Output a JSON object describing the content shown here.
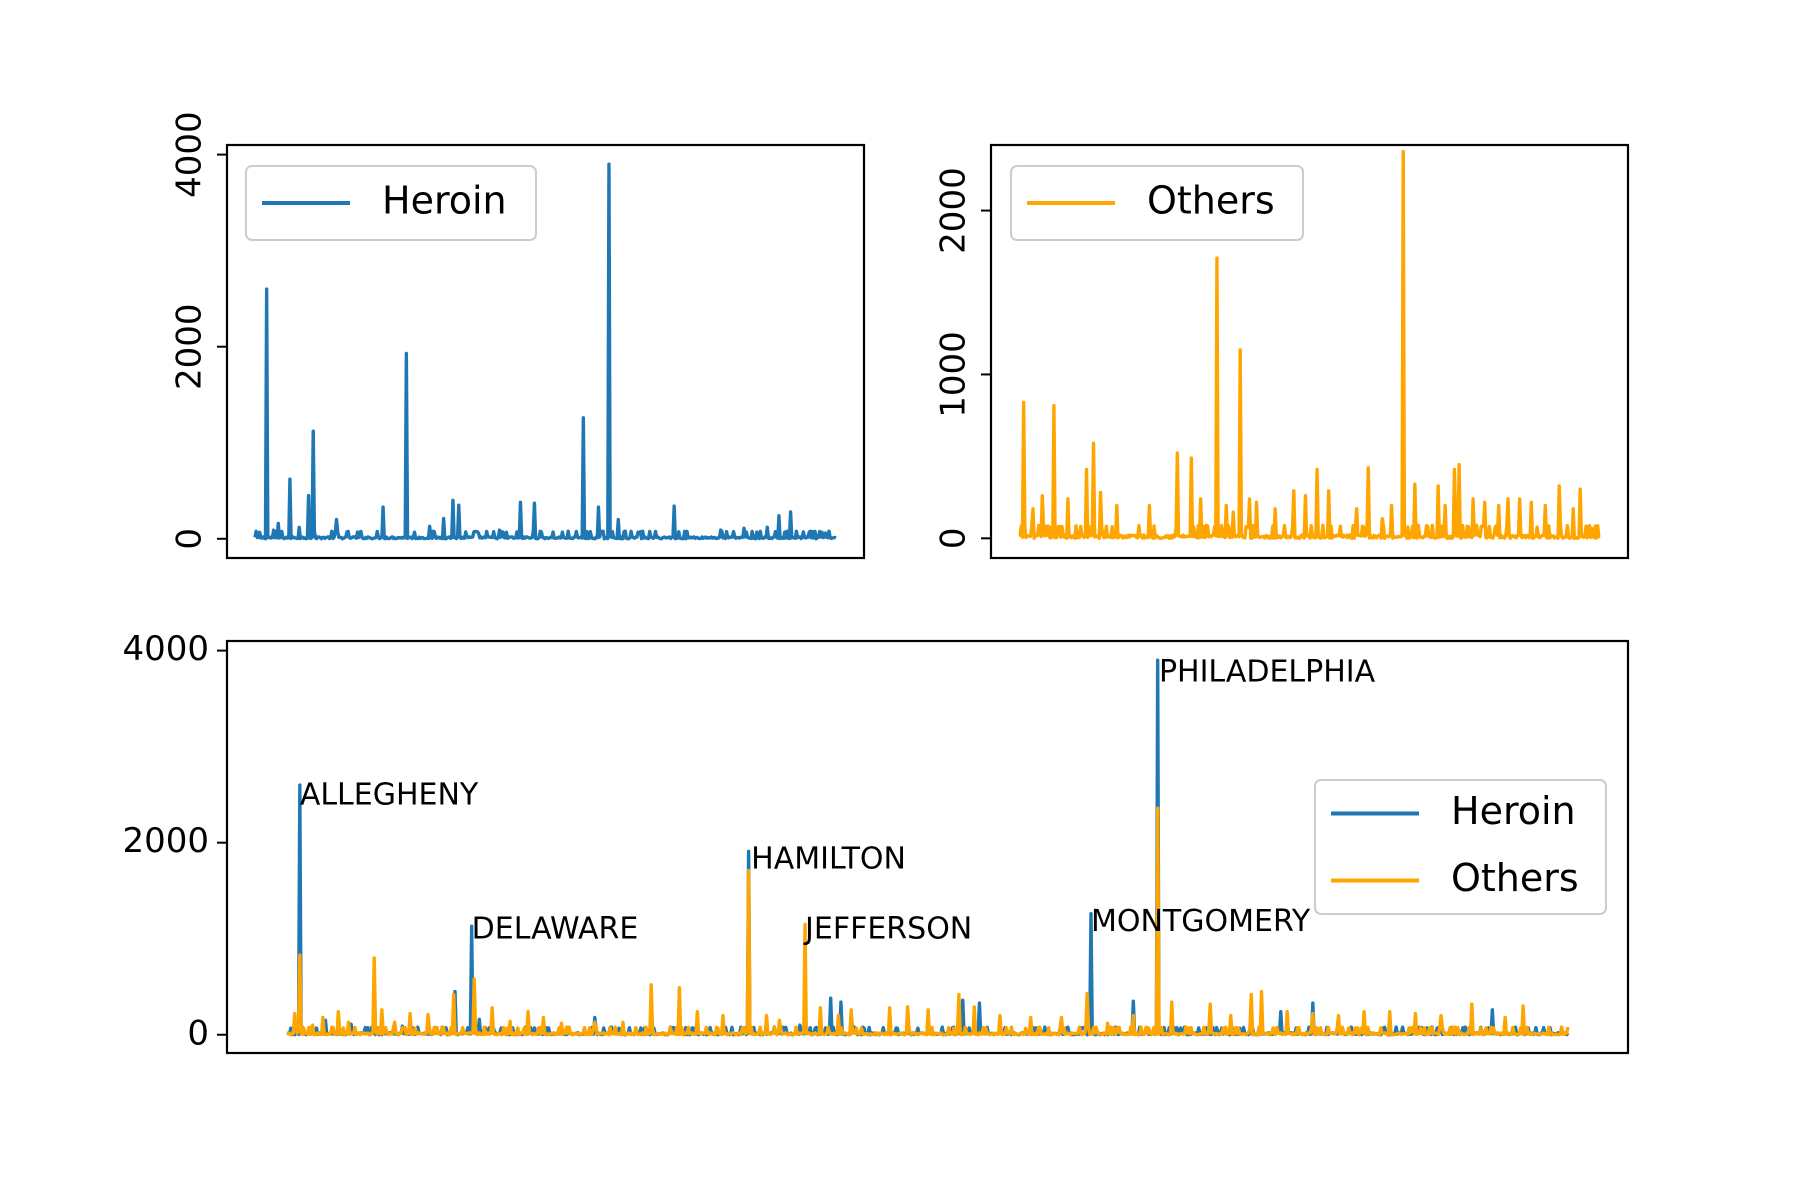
{
  "chart_data": [
    {
      "type": "line",
      "panel": "top-left",
      "title": "",
      "xlabel": "",
      "ylabel": "",
      "ylim": [
        -200,
        4100
      ],
      "yticks": [
        0,
        2000,
        4000
      ],
      "ytick_labels": [
        "0",
        "2000",
        "4000"
      ],
      "xticks_visible": false,
      "grid": false,
      "legend": {
        "placement": "upper-left",
        "entries": [
          {
            "label": "Heroin",
            "color": "#1f77b4"
          }
        ]
      },
      "series": [
        {
          "name": "Heroin",
          "color": "#1f77b4",
          "n_points": 500,
          "peaks": [
            [
              10,
              2600
            ],
            [
              16,
              90
            ],
            [
              20,
              160
            ],
            [
              30,
              620
            ],
            [
              38,
              120
            ],
            [
              46,
              450
            ],
            [
              50,
              1120
            ],
            [
              70,
              200
            ],
            [
              110,
              330
            ],
            [
              130,
              1930
            ],
            [
              150,
              130
            ],
            [
              162,
              210
            ],
            [
              170,
              400
            ],
            [
              175,
              350
            ],
            [
              192,
              60
            ],
            [
              210,
              90
            ],
            [
              228,
              380
            ],
            [
              240,
              370
            ],
            [
              282,
              1260
            ],
            [
              295,
              330
            ],
            [
              304,
              3900
            ],
            [
              312,
              200
            ],
            [
              330,
              60
            ],
            [
              360,
              340
            ],
            [
              400,
              90
            ],
            [
              420,
              110
            ],
            [
              440,
              120
            ],
            [
              450,
              240
            ],
            [
              460,
              280
            ],
            [
              490,
              60
            ]
          ],
          "baseline": 20
        }
      ]
    },
    {
      "type": "line",
      "panel": "top-right",
      "title": "",
      "xlabel": "",
      "ylabel": "",
      "ylim": [
        -120,
        2400
      ],
      "yticks": [
        0,
        1000,
        2000
      ],
      "ytick_labels": [
        "0",
        "1000",
        "2000"
      ],
      "xticks_visible": false,
      "grid": false,
      "legend": {
        "placement": "upper-left",
        "entries": [
          {
            "label": "Others",
            "color": "#ffa500"
          }
        ]
      },
      "series": [
        {
          "name": "Others",
          "color": "#ffa500",
          "n_points": 500,
          "peaks": [
            [
              4,
              830
            ],
            [
              12,
              180
            ],
            [
              20,
              260
            ],
            [
              30,
              810
            ],
            [
              42,
              240
            ],
            [
              58,
              420
            ],
            [
              64,
              580
            ],
            [
              70,
              280
            ],
            [
              84,
              200
            ],
            [
              112,
              200
            ],
            [
              136,
              520
            ],
            [
              148,
              490
            ],
            [
              156,
              240
            ],
            [
              170,
              1710
            ],
            [
              178,
              200
            ],
            [
              184,
              160
            ],
            [
              190,
              1150
            ],
            [
              198,
              240
            ],
            [
              204,
              220
            ],
            [
              220,
              180
            ],
            [
              236,
              290
            ],
            [
              246,
              260
            ],
            [
              256,
              420
            ],
            [
              266,
              290
            ],
            [
              290,
              180
            ],
            [
              300,
              430
            ],
            [
              312,
              120
            ],
            [
              320,
              200
            ],
            [
              330,
              2360
            ],
            [
              340,
              330
            ],
            [
              360,
              320
            ],
            [
              366,
              200
            ],
            [
              374,
              420
            ],
            [
              378,
              450
            ],
            [
              390,
              240
            ],
            [
              400,
              220
            ],
            [
              412,
              200
            ],
            [
              420,
              240
            ],
            [
              430,
              240
            ],
            [
              440,
              220
            ],
            [
              452,
              200
            ],
            [
              464,
              320
            ],
            [
              476,
              180
            ],
            [
              482,
              300
            ],
            [
              492,
              60
            ]
          ],
          "baseline": 20
        }
      ]
    },
    {
      "type": "line",
      "panel": "bottom",
      "title": "",
      "xlabel": "",
      "ylabel": "",
      "ylim": [
        -190,
        4100
      ],
      "yticks": [
        0,
        2000,
        4000
      ],
      "ytick_labels": [
        "0",
        "2000",
        "4000"
      ],
      "xticks_visible": false,
      "grid": false,
      "legend": {
        "placement": "center-right",
        "entries": [
          {
            "label": "Heroin",
            "color": "#1f77b4"
          },
          {
            "label": "Others",
            "color": "#ffa500"
          }
        ]
      },
      "annotations": [
        {
          "text": "ALLEGHENY",
          "x": 10,
          "y": 2400
        },
        {
          "text": "DELAWARE",
          "x": 144,
          "y": 1000
        },
        {
          "text": "HAMILTON",
          "x": 362,
          "y": 1730
        },
        {
          "text": "JEFFERSON",
          "x": 404,
          "y": 1000
        },
        {
          "text": "MONTGOMERY",
          "x": 627,
          "y": 1080
        },
        {
          "text": "PHILADELPHIA",
          "x": 680,
          "y": 3680
        }
      ],
      "series": [
        {
          "name": "Heroin",
          "color": "#1f77b4",
          "n_points": 1000,
          "peaks": [
            [
              10,
              2600
            ],
            [
              20,
              80
            ],
            [
              30,
              150
            ],
            [
              50,
              110
            ],
            [
              90,
              90
            ],
            [
              131,
              450
            ],
            [
              144,
              1130
            ],
            [
              150,
              160
            ],
            [
              220,
              60
            ],
            [
              240,
              180
            ],
            [
              300,
              60
            ],
            [
              360,
              1910
            ],
            [
              380,
              80
            ],
            [
              400,
              100
            ],
            [
              424,
              380
            ],
            [
              432,
              340
            ],
            [
              440,
              200
            ],
            [
              500,
              80
            ],
            [
              527,
              360
            ],
            [
              540,
              330
            ],
            [
              620,
              60
            ],
            [
              627,
              1260
            ],
            [
              660,
              350
            ],
            [
              679,
              3900
            ],
            [
              690,
              200
            ],
            [
              700,
              80
            ],
            [
              760,
              100
            ],
            [
              775,
              240
            ],
            [
              800,
              330
            ],
            [
              830,
              80
            ],
            [
              900,
              100
            ],
            [
              940,
              260
            ],
            [
              980,
              60
            ]
          ],
          "baseline": 20
        },
        {
          "name": "Others",
          "color": "#ffa500",
          "n_points": 1000,
          "peaks": [
            [
              6,
              220
            ],
            [
              10,
              830
            ],
            [
              20,
              100
            ],
            [
              28,
              180
            ],
            [
              40,
              240
            ],
            [
              48,
              130
            ],
            [
              68,
              800
            ],
            [
              74,
              260
            ],
            [
              84,
              130
            ],
            [
              96,
              220
            ],
            [
              110,
              210
            ],
            [
              130,
              420
            ],
            [
              146,
              580
            ],
            [
              160,
              280
            ],
            [
              174,
              140
            ],
            [
              188,
              240
            ],
            [
              200,
              180
            ],
            [
              214,
              120
            ],
            [
              240,
              130
            ],
            [
              262,
              130
            ],
            [
              284,
              520
            ],
            [
              306,
              490
            ],
            [
              320,
              240
            ],
            [
              340,
              200
            ],
            [
              360,
              1710
            ],
            [
              374,
              200
            ],
            [
              384,
              150
            ],
            [
              404,
              1150
            ],
            [
              416,
              280
            ],
            [
              430,
              200
            ],
            [
              440,
              260
            ],
            [
              470,
              280
            ],
            [
              484,
              290
            ],
            [
              500,
              260
            ],
            [
              524,
              420
            ],
            [
              536,
              290
            ],
            [
              556,
              200
            ],
            [
              580,
              180
            ],
            [
              604,
              180
            ],
            [
              624,
              430
            ],
            [
              640,
              120
            ],
            [
              660,
              200
            ],
            [
              679,
              2360
            ],
            [
              690,
              340
            ],
            [
              720,
              320
            ],
            [
              736,
              200
            ],
            [
              752,
              420
            ],
            [
              760,
              450
            ],
            [
              780,
              240
            ],
            [
              800,
              220
            ],
            [
              820,
              200
            ],
            [
              840,
              240
            ],
            [
              860,
              240
            ],
            [
              880,
              220
            ],
            [
              900,
              200
            ],
            [
              924,
              320
            ],
            [
              950,
              180
            ],
            [
              964,
              300
            ],
            [
              984,
              60
            ]
          ],
          "baseline": 20
        }
      ]
    }
  ]
}
